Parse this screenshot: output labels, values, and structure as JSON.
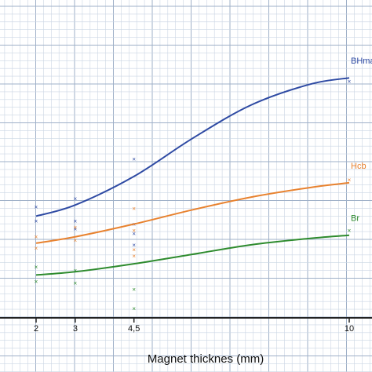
{
  "chart_data": {
    "type": "line",
    "title": "",
    "xlabel": "Magnet thicknes  (mm)",
    "ylabel": "",
    "xlim": [
      0,
      11.3
    ],
    "ylim": [
      0,
      10
    ],
    "x_ticks": [
      {
        "value": 2,
        "label": "2"
      },
      {
        "value": 3,
        "label": "3"
      },
      {
        "value": 4.5,
        "label": "4,5"
      },
      {
        "value": 10,
        "label": "10"
      }
    ],
    "grid": true,
    "series": [
      {
        "name": "BHmax",
        "color": "#2e4aa3",
        "curve": [
          [
            2,
            3.2
          ],
          [
            3,
            3.55
          ],
          [
            4.5,
            4.45
          ],
          [
            6,
            5.65
          ],
          [
            7.5,
            6.7
          ],
          [
            9,
            7.35
          ],
          [
            10,
            7.55
          ]
        ],
        "points": [
          [
            2,
            3.5
          ],
          [
            2,
            3.05
          ],
          [
            3,
            3.75
          ],
          [
            3,
            3.05
          ],
          [
            3,
            2.8
          ],
          [
            4.5,
            5.0
          ],
          [
            4.5,
            2.95
          ],
          [
            4.5,
            2.65
          ],
          [
            4.5,
            2.3
          ],
          [
            10,
            7.45
          ]
        ]
      },
      {
        "name": "Hcb",
        "color": "#e8822f",
        "curve": [
          [
            2,
            2.35
          ],
          [
            3,
            2.55
          ],
          [
            4.5,
            2.95
          ],
          [
            6,
            3.4
          ],
          [
            7.5,
            3.8
          ],
          [
            9,
            4.1
          ],
          [
            10,
            4.25
          ]
        ],
        "points": [
          [
            2,
            2.55
          ],
          [
            2,
            2.2
          ],
          [
            3,
            2.85
          ],
          [
            3,
            2.45
          ],
          [
            4.5,
            3.45
          ],
          [
            4.5,
            2.75
          ],
          [
            4.5,
            2.15
          ],
          [
            4.5,
            1.95
          ],
          [
            10,
            4.35
          ]
        ]
      },
      {
        "name": "Br",
        "color": "#2e8b2e",
        "curve": [
          [
            2,
            1.35
          ],
          [
            3,
            1.45
          ],
          [
            4.5,
            1.7
          ],
          [
            6,
            2.0
          ],
          [
            7.5,
            2.3
          ],
          [
            9,
            2.5
          ],
          [
            10,
            2.6
          ]
        ],
        "points": [
          [
            2,
            1.6
          ],
          [
            2,
            1.15
          ],
          [
            3,
            1.5
          ],
          [
            3,
            1.1
          ],
          [
            4.5,
            0.9
          ],
          [
            4.5,
            0.3
          ],
          [
            10,
            2.75
          ]
        ]
      }
    ]
  }
}
